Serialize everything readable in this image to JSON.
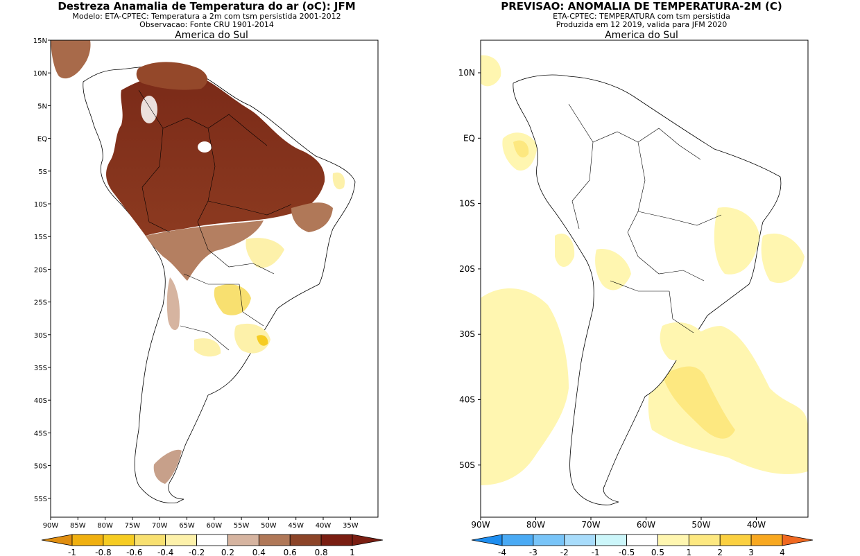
{
  "panels": [
    {
      "id": "skill",
      "title": "Destreza Anamalia de Temperatura do ar (oC): JFM",
      "subtitle_lines": [
        "Modelo: ETA-CPTEC: Temperatura a 2m com tsm persistida 2001-2012",
        "Observacao: Fonte CRU 1901-2014"
      ],
      "region_label": "America do Sul",
      "lat_ticks": [
        "15N",
        "10N",
        "5N",
        "EQ",
        "5S",
        "10S",
        "15S",
        "20S",
        "25S",
        "30S",
        "35S",
        "40S",
        "45S",
        "50S",
        "55S"
      ],
      "lon_ticks": [
        "90W",
        "85W",
        "80W",
        "75W",
        "70W",
        "65W",
        "60W",
        "55W",
        "50W",
        "45W",
        "40W",
        "35W"
      ],
      "colorbar": {
        "labels": [
          "-1",
          "-0.8",
          "-0.6",
          "-0.4",
          "-0.2",
          "0.2",
          "0.4",
          "0.6",
          "0.8",
          "1"
        ],
        "colors": [
          "#e08e10",
          "#f0b010",
          "#f6cc22",
          "#f8e070",
          "#fdf1aa",
          "#ffffff",
          "#d6b4a0",
          "#b07858",
          "#8c4428",
          "#7a1e12"
        ]
      }
    },
    {
      "id": "forecast",
      "title": "PREVISAO: ANOMALIA DE TEMPERATURA-2M (C)",
      "subtitle_lines": [
        "ETA-CPTEC: TEMPERATURA com tsm persistida",
        "Produzida em 12 2019, valida para JFM 2020"
      ],
      "region_label": "America do Sul",
      "lat_ticks": [
        "10N",
        "EQ",
        "10S",
        "20S",
        "30S",
        "40S",
        "50S"
      ],
      "lon_ticks": [
        "90W",
        "80W",
        "70W",
        "60W",
        "50W",
        "40W"
      ],
      "colorbar": {
        "labels": [
          "-4",
          "-3",
          "-2",
          "-1",
          "-0.5",
          "0.5",
          "1",
          "2",
          "3",
          "4"
        ],
        "colors": [
          "#1e8ef0",
          "#4aaaf4",
          "#78c4f8",
          "#a8dcfb",
          "#ccf6fa",
          "#ffffff",
          "#fff6b0",
          "#fde880",
          "#fbd040",
          "#f8a820",
          "#f06820"
        ]
      }
    }
  ]
}
